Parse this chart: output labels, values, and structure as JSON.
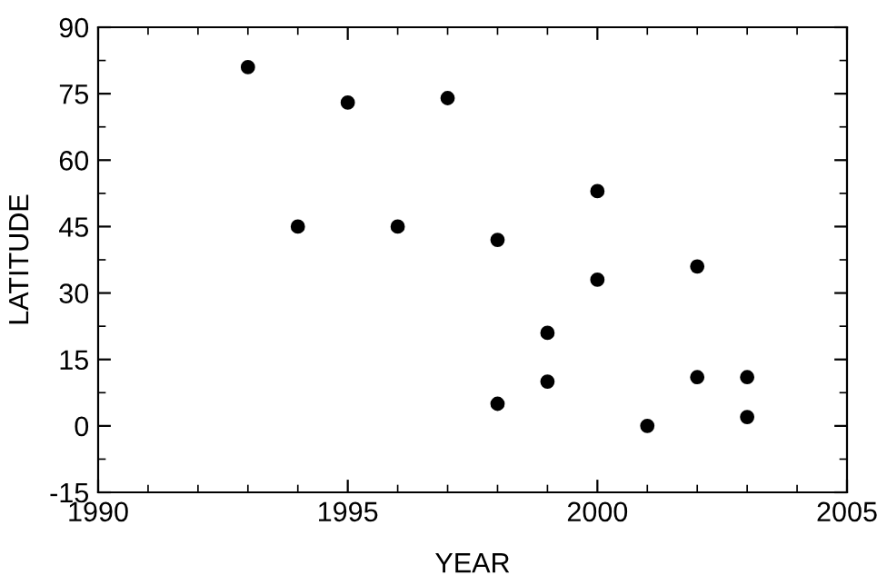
{
  "chart_data": {
    "type": "scatter",
    "xlabel": "YEAR",
    "ylabel": "LATITUDE",
    "x": [
      1993,
      1994,
      1995,
      1996,
      1997,
      1998,
      1998,
      1999,
      1999,
      2000,
      2000,
      2001,
      2002,
      2002,
      2003,
      2003
    ],
    "values": [
      81,
      45,
      73,
      45,
      74,
      42,
      5,
      21,
      10,
      53,
      33,
      0,
      36,
      11,
      11,
      2
    ],
    "color": "#000000",
    "marker": "circle",
    "xlim": [
      1990,
      2005
    ],
    "xticks": [
      1990,
      1995,
      2000,
      2005
    ],
    "ylim": [
      -15,
      90
    ],
    "yticks": [
      -15,
      0,
      15,
      30,
      45,
      60,
      75,
      90
    ]
  }
}
